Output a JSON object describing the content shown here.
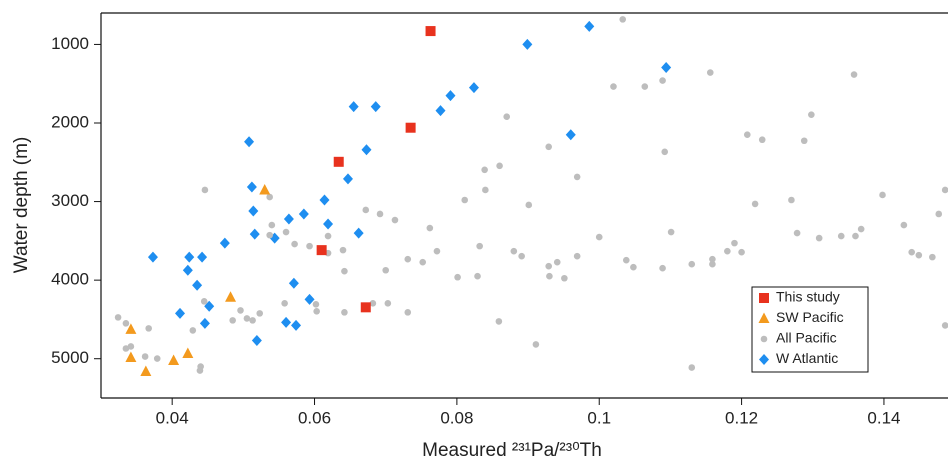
{
  "chart_data": {
    "type": "scatter",
    "x_label": "Measured ²³¹Pa/²³⁰Th",
    "y_label": "Water depth (m)",
    "xlim": [
      0.03,
      0.149
    ],
    "ylim": [
      600,
      5500
    ],
    "y_inverted": true,
    "xticks": [
      0.04,
      0.06,
      0.08,
      0.1,
      0.12,
      0.14
    ],
    "yticks": [
      1000,
      2000,
      3000,
      4000,
      5000
    ],
    "legend": "lower right",
    "series": [
      {
        "name": "This study",
        "color": "#e8321e",
        "marker": "square",
        "x": [
          0.0763,
          0.0735,
          0.0634,
          0.061,
          0.0672
        ],
        "values": [
          830,
          2060,
          2494,
          3618,
          4346
        ]
      },
      {
        "name": "SW Pacific",
        "color": "#f39a1e",
        "marker": "triangle",
        "x": [
          0.0342,
          0.0342,
          0.0363,
          0.0402,
          0.0422,
          0.0482,
          0.053
        ],
        "values": [
          4627,
          4985,
          5163,
          5023,
          4934,
          4218,
          2852
        ]
      },
      {
        "name": "All Pacific",
        "color": "#bdbdbd",
        "marker": "circle",
        "x": [
          0.1033,
          0.102,
          0.1156,
          0.1089,
          0.1358,
          0.087,
          0.1064,
          0.1208,
          0.1229,
          0.1288,
          0.1298,
          0.1092,
          0.0929,
          0.0839,
          0.086,
          0.0969,
          0.084,
          0.0901,
          0.0811,
          0.1219,
          0.127,
          0.1398,
          0.1486,
          0.0537,
          0.0446,
          0.0672,
          0.0692,
          0.0713,
          0.054,
          0.056,
          0.0619,
          0.0572,
          0.0537,
          0.0762,
          0.1,
          0.1101,
          0.1278,
          0.1309,
          0.134,
          0.136,
          0.1368,
          0.1428,
          0.1477,
          0.119,
          0.12,
          0.118,
          0.1159,
          0.1159,
          0.113,
          0.1089,
          0.1038,
          0.1048,
          0.0969,
          0.0941,
          0.0929,
          0.093,
          0.0951,
          0.0891,
          0.088,
          0.0832,
          0.0829,
          0.0801,
          0.0772,
          0.0752,
          0.0731,
          0.07,
          0.0642,
          0.064,
          0.0619,
          0.1449,
          0.1439,
          0.1468,
          0.1486,
          0.0593,
          0.0703,
          0.0682,
          0.0642,
          0.0731,
          0.0603,
          0.0602,
          0.0558,
          0.0523,
          0.0496,
          0.0485,
          0.0505,
          0.0513,
          0.0445,
          0.0429,
          0.044,
          0.0439,
          0.0379,
          0.0362,
          0.0335,
          0.0324,
          0.0335,
          0.0367,
          0.0342,
          0.0859,
          0.0911,
          0.113
        ],
        "values": [
          681,
          1536,
          1358,
          1460,
          1383,
          1920,
          1536,
          2149,
          2213,
          2226,
          1894,
          2367,
          2303,
          2596,
          2545,
          2686,
          2852,
          3043,
          2980,
          3030,
          2980,
          2916,
          2852,
          2942,
          2852,
          3107,
          3158,
          3235,
          3299,
          3388,
          3439,
          3541,
          3427,
          3337,
          3452,
          3388,
          3401,
          3465,
          3439,
          3439,
          3350,
          3299,
          3158,
          3529,
          3644,
          3631,
          3733,
          3797,
          3797,
          3848,
          3746,
          3835,
          3695,
          3771,
          3822,
          3950,
          3976,
          3695,
          3631,
          3567,
          3950,
          3963,
          3631,
          3771,
          3733,
          3874,
          3886,
          3618,
          3656,
          3682,
          3644,
          3707,
          4576,
          3567,
          4295,
          4295,
          4410,
          4410,
          4397,
          4308,
          4295,
          4423,
          4385,
          4512,
          4487,
          4512,
          4270,
          4640,
          5100,
          5151,
          4998,
          4972,
          4870,
          4474,
          4550,
          4614,
          4844,
          4525,
          4818,
          5112
        ]
      },
      {
        "name": "W Atlantic",
        "color": "#1e8ef0",
        "marker": "diamond",
        "x": [
          0.0986,
          0.0899,
          0.1094,
          0.0824,
          0.0791,
          0.0777,
          0.0686,
          0.0655,
          0.096,
          0.0508,
          0.0673,
          0.0647,
          0.0512,
          0.0614,
          0.0514,
          0.0585,
          0.0564,
          0.0619,
          0.0544,
          0.0662,
          0.0474,
          0.0516,
          0.0373,
          0.0424,
          0.0442,
          0.0422,
          0.0571,
          0.0435,
          0.0411,
          0.0452,
          0.0593,
          0.0446,
          0.056,
          0.0574,
          0.0519
        ],
        "values": [
          770,
          1000,
          1294,
          1549,
          1651,
          1843,
          1792,
          1792,
          2149,
          2239,
          2341,
          2711,
          2814,
          2980,
          3120,
          3158,
          3222,
          3286,
          3465,
          3401,
          3529,
          3414,
          3707,
          3707,
          3707,
          3874,
          4040,
          4065,
          4423,
          4333,
          4244,
          4550,
          4538,
          4576,
          4768
        ]
      }
    ]
  }
}
